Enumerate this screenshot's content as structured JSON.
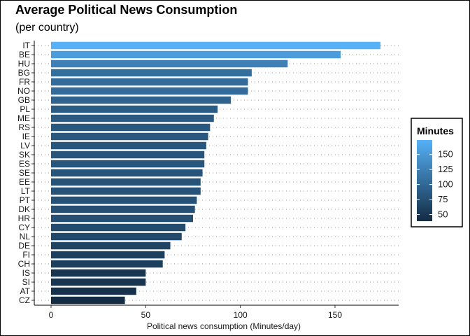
{
  "chart_data": {
    "type": "bar",
    "orientation": "horizontal",
    "title": "Average Political News Consumption",
    "subtitle": "(per country)",
    "xlabel": "Political news consumption (Minutes/day)",
    "ylabel": "",
    "xlim": [
      0,
      182
    ],
    "xticks": [
      0,
      50,
      100,
      150
    ],
    "grid": "dotted horizontal",
    "categories": [
      "IT",
      "BE",
      "HU",
      "BG",
      "FR",
      "NO",
      "GB",
      "PL",
      "ME",
      "RS",
      "IE",
      "LV",
      "SK",
      "ES",
      "SE",
      "EE",
      "LT",
      "PT",
      "DK",
      "HR",
      "CY",
      "NL",
      "DE",
      "FI",
      "CH",
      "IS",
      "SI",
      "AT",
      "CZ"
    ],
    "values": [
      174,
      153,
      125,
      106,
      104,
      104,
      95,
      88,
      86,
      84,
      83,
      82,
      81,
      81,
      80,
      79,
      79,
      77,
      76,
      75,
      71,
      69,
      63,
      60,
      59,
      50,
      50,
      45,
      39
    ],
    "color_scale": {
      "title": "Minutes",
      "low_color": "#132B43",
      "high_color": "#56B1F7",
      "ticks": [
        150,
        125,
        100,
        75,
        50
      ],
      "range": [
        39,
        174
      ]
    },
    "legend_position": "right"
  }
}
